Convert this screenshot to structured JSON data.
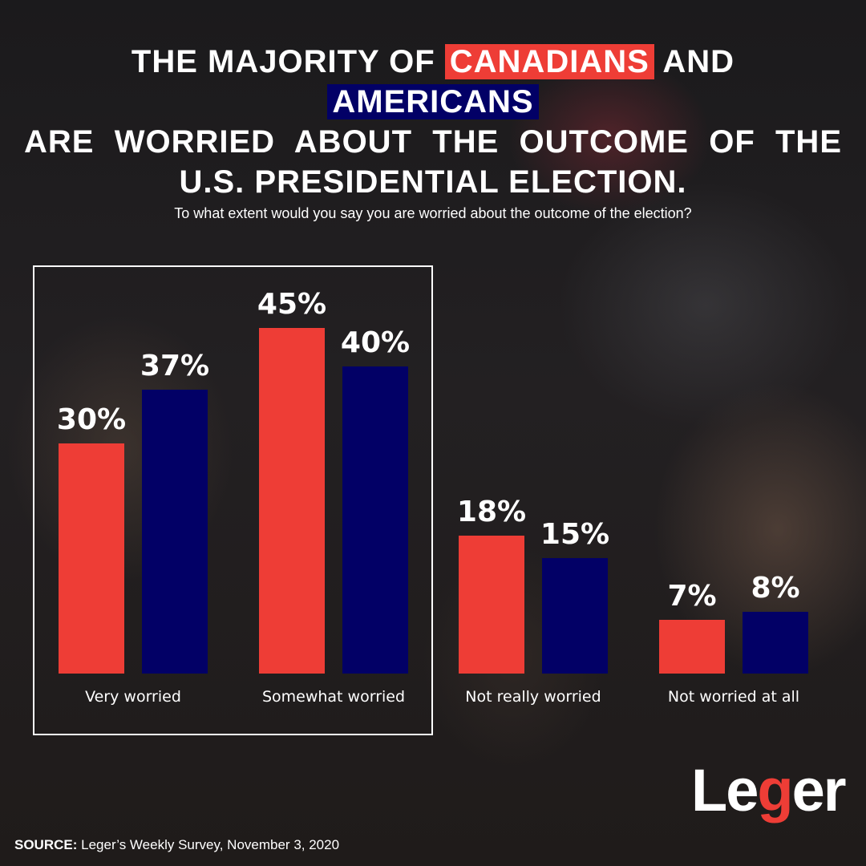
{
  "title": {
    "part1": "THE MAJORITY OF",
    "highlight_ca": "CANADIANS",
    "part2": "AND",
    "highlight_us": "AMERICANS",
    "line2": "ARE WORRIED ABOUT THE OUTCOME OF THE",
    "line3": "U.S. PRESIDENTIAL ELECTION."
  },
  "question": "To what extent would you say you are worried about the outcome of the election?",
  "colors": {
    "canadians": "#ee3d36",
    "americans": "#020066"
  },
  "chart_data": {
    "type": "bar",
    "title": "To what extent would you say you are worried about the outcome of the election?",
    "xlabel": "",
    "ylabel": "",
    "ylim": [
      0,
      45
    ],
    "grid": false,
    "categories": [
      "Very worried",
      "Somewhat worried",
      "Not really worried",
      "Not worried at all"
    ],
    "series": [
      {
        "name": "Canadians",
        "color": "#ee3d36",
        "values": [
          30,
          45,
          18,
          7
        ],
        "labels": [
          "30%",
          "45%",
          "18%",
          "7%"
        ]
      },
      {
        "name": "Americans",
        "color": "#020066",
        "values": [
          37,
          40,
          15,
          8
        ],
        "labels": [
          "37%",
          "40%",
          "15%",
          "8%"
        ]
      }
    ],
    "highlight_box_categories": [
      "Very worried",
      "Somewhat worried"
    ]
  },
  "logo": {
    "part1": "Le",
    "part2": "g",
    "part3": "er"
  },
  "source": {
    "label": "SOURCE:",
    "text": " Leger’s Weekly Survey, November 3, 2020"
  }
}
